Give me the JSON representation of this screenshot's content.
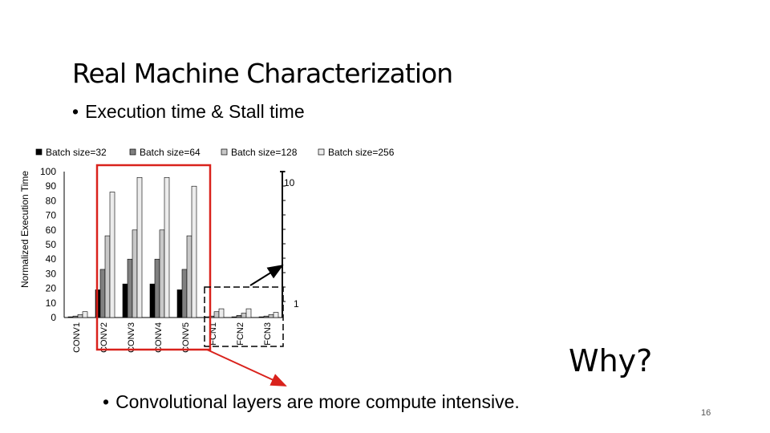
{
  "slide": {
    "title": "Real Machine Characterization",
    "bullet1": "Execution time & Stall time",
    "bullet2": "Convolutional layers are more compute intensive.",
    "bullet_glyph": "•",
    "why": "Why?",
    "page_number": "16"
  },
  "chart_data": {
    "type": "bar",
    "ylabel": "Normalized Execution Time",
    "ylim": [
      0,
      100
    ],
    "yticks": [
      0,
      10,
      20,
      30,
      40,
      50,
      60,
      70,
      80,
      90,
      100
    ],
    "categories": [
      "CONV1",
      "CONV2",
      "CONV3",
      "CONV4",
      "CONV5",
      "FCN1",
      "FCN2",
      "FCN3"
    ],
    "legend_position": "top",
    "series": [
      {
        "name": "Batch size=32",
        "color": "#000000",
        "values": [
          0.5,
          19,
          23,
          23,
          19,
          0.5,
          0.5,
          0.5
        ]
      },
      {
        "name": "Batch size=64",
        "color": "#808080",
        "values": [
          1,
          33,
          40,
          40,
          33,
          1,
          1.5,
          1
        ]
      },
      {
        "name": "Batch size=128",
        "color": "#c8c8c8",
        "values": [
          2,
          56,
          60,
          60,
          56,
          4,
          3,
          2
        ]
      },
      {
        "name": "Batch size=256",
        "color": "#ececec",
        "values": [
          4,
          86,
          96,
          96,
          90,
          6,
          6,
          3.5
        ]
      }
    ],
    "inset": {
      "ylim": [
        1,
        10
      ],
      "tick_labels": [
        "10",
        "1"
      ]
    }
  }
}
